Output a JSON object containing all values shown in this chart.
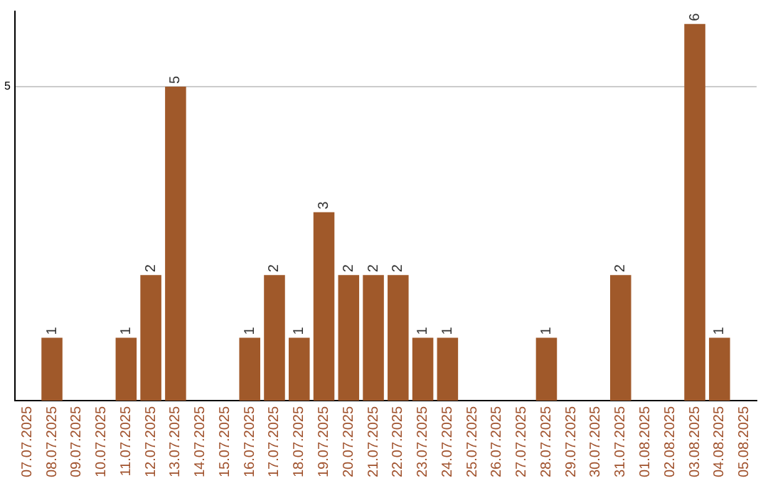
{
  "chart_data": {
    "type": "bar",
    "categories": [
      "07.07.2025",
      "08.07.2025",
      "09.07.2025",
      "10.07.2025",
      "11.07.2025",
      "12.07.2025",
      "13.07.2025",
      "14.07.2025",
      "15.07.2025",
      "16.07.2025",
      "17.07.2025",
      "18.07.2025",
      "19.07.2025",
      "20.07.2025",
      "21.07.2025",
      "22.07.2025",
      "23.07.2025",
      "24.07.2025",
      "25.07.2025",
      "26.07.2025",
      "27.07.2025",
      "28.07.2025",
      "29.07.2025",
      "30.07.2025",
      "31.07.2025",
      "01.08.2025",
      "02.08.2025",
      "03.08.2025",
      "04.08.2025",
      "05.08.2025"
    ],
    "values": [
      0,
      1,
      0,
      0,
      1,
      2,
      5,
      0,
      0,
      1,
      2,
      1,
      3,
      2,
      2,
      2,
      1,
      1,
      0,
      0,
      0,
      1,
      0,
      0,
      2,
      0,
      0,
      6,
      1,
      0
    ],
    "value_labels": [
      null,
      "1",
      null,
      null,
      "1",
      "2",
      "5",
      null,
      null,
      "1",
      "2",
      "1",
      "3",
      "2",
      "2",
      "2",
      "1",
      "1",
      null,
      null,
      null,
      "1",
      null,
      null,
      "2",
      null,
      null,
      "6",
      "1",
      null
    ],
    "color": "#a0592a",
    "ylim": [
      0,
      6.2
    ],
    "yticks": [
      5
    ],
    "grid": "y"
  }
}
